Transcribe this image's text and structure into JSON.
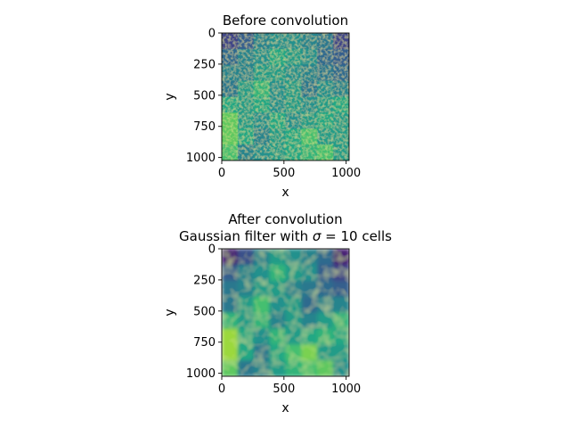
{
  "chart_data": [
    {
      "type": "heatmap",
      "title": "Before convolution",
      "xlabel": "x",
      "ylabel": "y",
      "xlim": [
        0,
        1024
      ],
      "ylim": [
        1024,
        0
      ],
      "xticks": [
        "0",
        "500",
        "1000"
      ],
      "yticks": [
        "0",
        "250",
        "500",
        "750",
        "1000"
      ],
      "colormap": "viridis",
      "grid": false,
      "value_range": [
        0,
        1
      ],
      "texture": "fine-grained random field",
      "values": [
        [
          0.2,
          0.3,
          0.45,
          0.5,
          0.5,
          0.45,
          0.4,
          0.2
        ],
        [
          0.35,
          0.45,
          0.5,
          0.6,
          0.55,
          0.5,
          0.35,
          0.3
        ],
        [
          0.45,
          0.45,
          0.55,
          0.55,
          0.5,
          0.45,
          0.4,
          0.35
        ],
        [
          0.4,
          0.55,
          0.65,
          0.5,
          0.55,
          0.4,
          0.5,
          0.45
        ],
        [
          0.6,
          0.55,
          0.6,
          0.5,
          0.55,
          0.5,
          0.55,
          0.6
        ],
        [
          0.75,
          0.55,
          0.5,
          0.6,
          0.5,
          0.55,
          0.6,
          0.55
        ],
        [
          0.75,
          0.6,
          0.45,
          0.55,
          0.6,
          0.7,
          0.55,
          0.55
        ],
        [
          0.7,
          0.45,
          0.5,
          0.55,
          0.6,
          0.65,
          0.7,
          0.55
        ]
      ]
    },
    {
      "type": "heatmap",
      "title": "After convolution",
      "subtitle_prefix": "Gaussian filter with ",
      "subtitle_symbol": "σ",
      "subtitle_suffix": " = 10 cells",
      "xlabel": "x",
      "ylabel": "y",
      "xlim": [
        0,
        1024
      ],
      "ylim": [
        1024,
        0
      ],
      "xticks": [
        "0",
        "500",
        "1000"
      ],
      "yticks": [
        "0",
        "250",
        "500",
        "750",
        "1000"
      ],
      "colormap": "viridis",
      "grid": false,
      "value_range": [
        0,
        1
      ],
      "texture": "smoothed random field",
      "values": [
        [
          0.1,
          0.25,
          0.45,
          0.55,
          0.5,
          0.45,
          0.35,
          0.1
        ],
        [
          0.3,
          0.45,
          0.5,
          0.65,
          0.55,
          0.5,
          0.3,
          0.2
        ],
        [
          0.4,
          0.45,
          0.55,
          0.55,
          0.45,
          0.4,
          0.35,
          0.3
        ],
        [
          0.4,
          0.55,
          0.7,
          0.5,
          0.55,
          0.35,
          0.45,
          0.45
        ],
        [
          0.65,
          0.55,
          0.65,
          0.45,
          0.55,
          0.45,
          0.55,
          0.65
        ],
        [
          0.85,
          0.6,
          0.5,
          0.65,
          0.55,
          0.6,
          0.65,
          0.6
        ],
        [
          0.85,
          0.6,
          0.4,
          0.6,
          0.7,
          0.8,
          0.55,
          0.55
        ],
        [
          0.75,
          0.4,
          0.45,
          0.55,
          0.65,
          0.7,
          0.75,
          0.5
        ]
      ]
    }
  ]
}
